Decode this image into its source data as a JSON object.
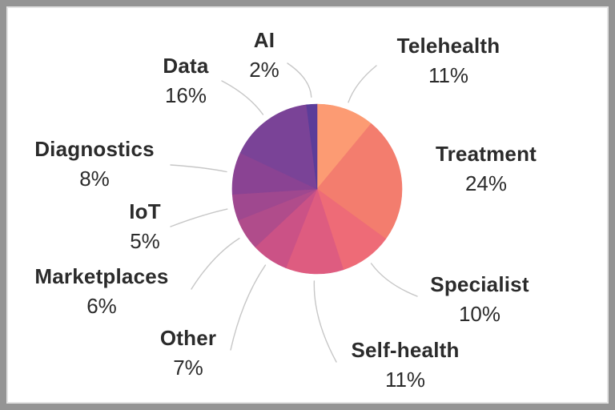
{
  "chart_data": {
    "type": "pie",
    "title": "",
    "legend_position": "none",
    "start_angle_deg": 0,
    "direction": "clockwise",
    "text_color": "#2b2b2b",
    "leader_line_color": "#c7c7c7",
    "background_color": "#ffffff",
    "frame_color": "#949494",
    "slices": [
      {
        "label": "Telehealth",
        "value": 11,
        "pct_label": "11%",
        "color": "#FC9B73"
      },
      {
        "label": "Treatment",
        "value": 24,
        "pct_label": "24%",
        "color": "#F37D6E"
      },
      {
        "label": "Specialist",
        "value": 10,
        "pct_label": "10%",
        "color": "#EE6B77"
      },
      {
        "label": "Self-health",
        "value": 11,
        "pct_label": "11%",
        "color": "#DE5C80"
      },
      {
        "label": "Other",
        "value": 7,
        "pct_label": "7%",
        "color": "#CB5286"
      },
      {
        "label": "Marketplaces",
        "value": 6,
        "pct_label": "6%",
        "color": "#B04C8B"
      },
      {
        "label": "IoT",
        "value": 5,
        "pct_label": "5%",
        "color": "#9F488F"
      },
      {
        "label": "Diagnostics",
        "value": 8,
        "pct_label": "8%",
        "color": "#8A4393"
      },
      {
        "label": "Data",
        "value": 16,
        "pct_label": "16%",
        "color": "#7A4397"
      },
      {
        "label": "AI",
        "value": 2,
        "pct_label": "2%",
        "color": "#5C3D99"
      }
    ]
  }
}
